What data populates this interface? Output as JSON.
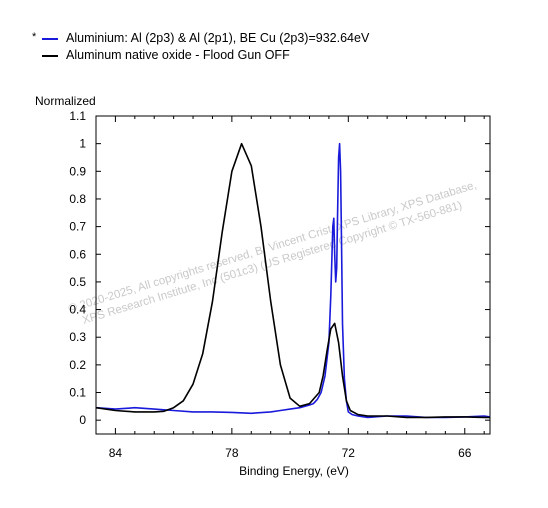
{
  "legend": {
    "marker": "*",
    "items": [
      {
        "label": "Aluminium: Al (2p3) & Al (2p1), BE Cu (2p3)=932.64eV",
        "color": "#1a1adb"
      },
      {
        "label": "Aluminum native oxide - Flood Gun OFF",
        "color": "#000000"
      }
    ]
  },
  "watermark": {
    "line1": "©  2020-2025,  All copyrights reserved,   B. Vincent Crist,  XPS Library, XPS Database,",
    "line2": "XPS Research Institute, Inc (501c3)   (US Registered Copyright © TX-560-881)"
  },
  "chart_data": {
    "type": "line",
    "title": "",
    "xlabel": "Binding Energy, (eV)",
    "ylabel": "Normalized",
    "xlim": [
      85.0,
      64.7
    ],
    "ylim": [
      -0.05,
      1.1
    ],
    "x_reversed": true,
    "xticks": [
      84,
      78,
      72,
      66
    ],
    "yticks": [
      0,
      0.1,
      0.2,
      0.3,
      0.4,
      0.5,
      0.6,
      0.7,
      0.8,
      0.9,
      1,
      1.1
    ],
    "ytick_labels": [
      "0",
      "0.1",
      "0.2",
      "0.3",
      "0.4",
      "0.5",
      "0.6",
      "0.7",
      "0.8",
      "0.9",
      "1",
      "1.1"
    ],
    "grid": false,
    "legend_position": "top-left",
    "series": [
      {
        "name": "Aluminium: Al (2p3) & Al (2p1), BE Cu (2p3)=932.64eV",
        "color": "#1a1adb",
        "x": [
          85.0,
          84.0,
          83.0,
          82.0,
          81.0,
          80.0,
          79.0,
          78.0,
          77.0,
          76.0,
          75.5,
          75.0,
          74.5,
          74.0,
          73.8,
          73.6,
          73.4,
          73.2,
          73.0,
          72.9,
          72.8,
          72.75,
          72.7,
          72.65,
          72.6,
          72.55,
          72.5,
          72.45,
          72.4,
          72.35,
          72.3,
          72.2,
          72.1,
          72.0,
          71.8,
          71.5,
          71.0,
          70.0,
          69.0,
          68.0,
          67.0,
          66.0,
          65.0,
          64.7
        ],
        "y": [
          0.045,
          0.04,
          0.045,
          0.04,
          0.035,
          0.03,
          0.03,
          0.028,
          0.025,
          0.03,
          0.035,
          0.04,
          0.045,
          0.055,
          0.06,
          0.075,
          0.1,
          0.16,
          0.28,
          0.45,
          0.7,
          0.73,
          0.6,
          0.5,
          0.55,
          0.75,
          0.95,
          1.0,
          0.9,
          0.65,
          0.35,
          0.15,
          0.07,
          0.03,
          0.02,
          0.015,
          0.01,
          0.015,
          0.015,
          0.01,
          0.01,
          0.012,
          0.015,
          0.012
        ]
      },
      {
        "name": "Aluminum native oxide - Flood Gun OFF",
        "color": "#000000",
        "x": [
          85.0,
          84.0,
          83.0,
          82.0,
          81.5,
          81.0,
          80.5,
          80.0,
          79.5,
          79.0,
          78.5,
          78.0,
          77.5,
          77.0,
          76.5,
          76.0,
          75.5,
          75.0,
          74.5,
          74.0,
          73.5,
          73.3,
          73.1,
          72.9,
          72.7,
          72.5,
          72.3,
          72.1,
          71.9,
          71.5,
          71.0,
          70.5,
          70.0,
          69.0,
          68.0,
          67.0,
          66.0,
          65.0,
          64.7
        ],
        "y": [
          0.045,
          0.035,
          0.03,
          0.03,
          0.032,
          0.045,
          0.07,
          0.13,
          0.24,
          0.43,
          0.68,
          0.9,
          1.0,
          0.92,
          0.7,
          0.43,
          0.2,
          0.08,
          0.05,
          0.06,
          0.1,
          0.16,
          0.25,
          0.33,
          0.35,
          0.28,
          0.16,
          0.07,
          0.035,
          0.02,
          0.015,
          0.015,
          0.015,
          0.01,
          0.01,
          0.012,
          0.012,
          0.01,
          0.01
        ]
      }
    ]
  }
}
